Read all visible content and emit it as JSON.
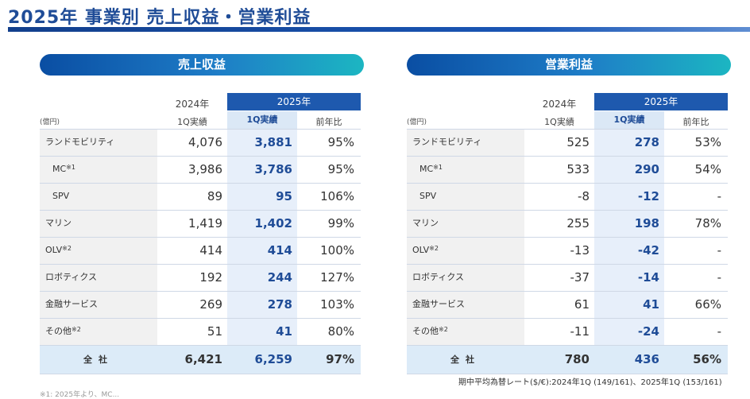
{
  "page_title": "2025年  事業別  売上収益・営業利益",
  "revenue": {
    "heading": "売上収益",
    "header": {
      "year_prev": "2024年",
      "year_cur": "2025年",
      "unit": "(億円)",
      "col_prev": "1Q実績",
      "col_cur": "1Q実績",
      "col_yoy": "前年比"
    },
    "rows": [
      {
        "label": "ランドモビリティ",
        "note": "",
        "prev": "4,076",
        "cur": "3,881",
        "yoy": "95%"
      },
      {
        "label": "MC",
        "note": "※1",
        "prev": "3,986",
        "cur": "3,786",
        "yoy": "95%"
      },
      {
        "label": "SPV",
        "note": "",
        "prev": "89",
        "cur": "95",
        "yoy": "106%"
      },
      {
        "label": "マリン",
        "note": "",
        "prev": "1,419",
        "cur": "1,402",
        "yoy": "99%"
      },
      {
        "label": "OLV",
        "note": "※2",
        "prev": "414",
        "cur": "414",
        "yoy": "100%"
      },
      {
        "label": "ロボティクス",
        "note": "",
        "prev": "192",
        "cur": "244",
        "yoy": "127%"
      },
      {
        "label": "金融サービス",
        "note": "",
        "prev": "269",
        "cur": "278",
        "yoy": "103%"
      },
      {
        "label": "その他",
        "note": "※2",
        "prev": "51",
        "cur": "41",
        "yoy": "80%"
      }
    ],
    "total": {
      "label": "全社",
      "prev": "6,421",
      "cur": "6,259",
      "yoy": "97%"
    }
  },
  "operating": {
    "heading": "営業利益",
    "header": {
      "year_prev": "2024年",
      "year_cur": "2025年",
      "unit": "(億円)",
      "col_prev": "1Q実績",
      "col_cur": "1Q実績",
      "col_yoy": "前年比"
    },
    "rows": [
      {
        "label": "ランドモビリティ",
        "note": "",
        "prev": "525",
        "cur": "278",
        "yoy": "53%"
      },
      {
        "label": "MC",
        "note": "※1",
        "prev": "533",
        "cur": "290",
        "yoy": "54%"
      },
      {
        "label": "SPV",
        "note": "",
        "prev": "-8",
        "cur": "-12",
        "yoy": "-"
      },
      {
        "label": "マリン",
        "note": "",
        "prev": "255",
        "cur": "198",
        "yoy": "78%"
      },
      {
        "label": "OLV",
        "note": "※2",
        "prev": "-13",
        "cur": "-42",
        "yoy": "-"
      },
      {
        "label": "ロボティクス",
        "note": "",
        "prev": "-37",
        "cur": "-14",
        "yoy": "-"
      },
      {
        "label": "金融サービス",
        "note": "",
        "prev": "61",
        "cur": "41",
        "yoy": "66%"
      },
      {
        "label": "その他",
        "note": "※2",
        "prev": "-11",
        "cur": "-24",
        "yoy": "-"
      }
    ],
    "total": {
      "label": "全社",
      "prev": "780",
      "cur": "436",
      "yoy": "56%"
    }
  },
  "rate_note": "期中平均為替レート($/€):2024年1Q (149/161)、2025年1Q (153/161)",
  "footnote": "※1: 2025年より、MC..."
}
